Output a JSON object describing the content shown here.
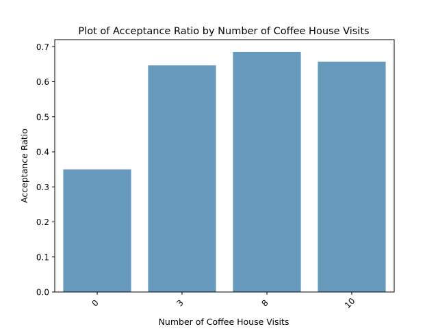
{
  "chart_data": {
    "type": "bar",
    "title": "Plot of Acceptance Ratio by Number of Coffee House Visits",
    "xlabel": "Number of Coffee House Visits",
    "ylabel": "Acceptance Ratio",
    "categories": [
      "0",
      "3",
      "8",
      "10"
    ],
    "values": [
      0.35,
      0.647,
      0.685,
      0.657
    ],
    "ylim": [
      0,
      0.72
    ],
    "yticks": [
      "0.0",
      "0.1",
      "0.2",
      "0.3",
      "0.4",
      "0.5",
      "0.6",
      "0.7"
    ],
    "grid": false,
    "legend": "none",
    "bar_color": "#6699BB"
  }
}
